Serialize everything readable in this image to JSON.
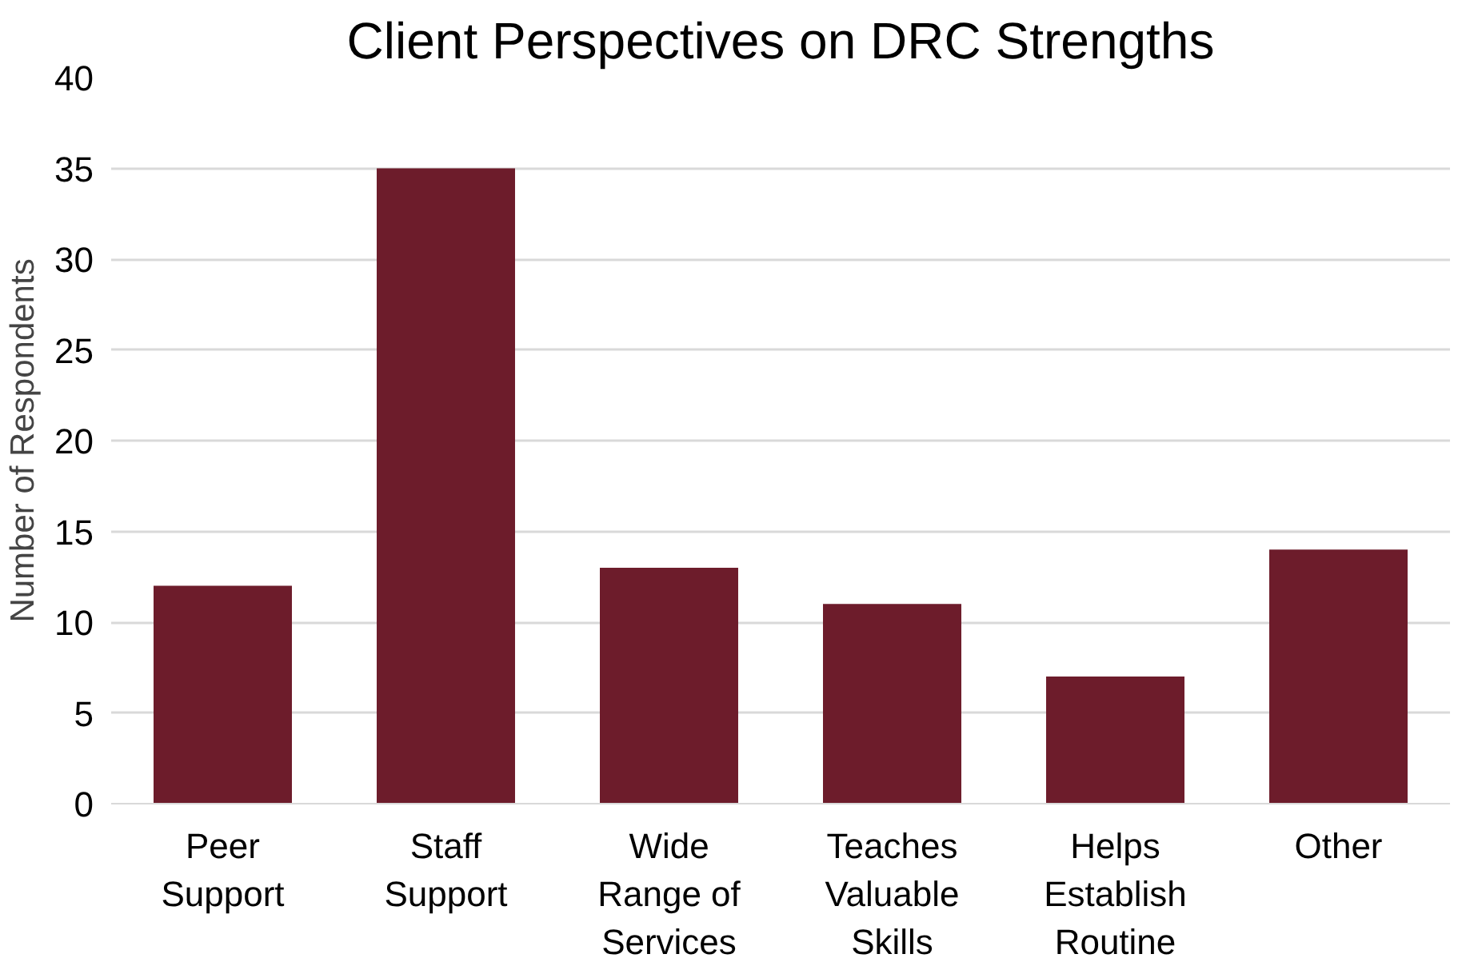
{
  "chart_data": {
    "type": "bar",
    "title": "Client Perspectives on DRC Strengths",
    "ylabel": "Number of Respondents",
    "categories": [
      "Peer\nSupport",
      "Staff\nSupport",
      "Wide\nRange of\nServices",
      "Teaches\nValuable\nSkills",
      "Helps\nEstablish\nRoutine",
      "Other"
    ],
    "values": [
      12,
      35,
      13,
      11,
      7,
      14
    ],
    "color": "#6d1c2b",
    "ylim": [
      0,
      40
    ],
    "yticks": [
      0,
      5,
      10,
      15,
      20,
      25,
      30,
      35,
      40
    ],
    "grid": "y"
  }
}
